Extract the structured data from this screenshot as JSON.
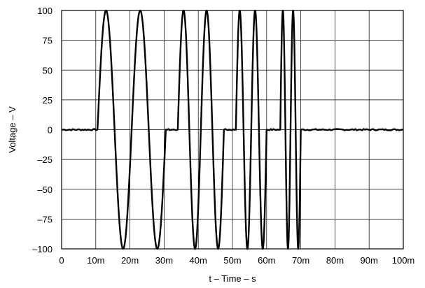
{
  "chart_data": {
    "type": "line",
    "title": "",
    "xlabel": "t – Time – s",
    "ylabel": "Voltage – V",
    "xlim": [
      0,
      0.1
    ],
    "ylim": [
      -100,
      100
    ],
    "grid": true,
    "x_ticks": [
      {
        "value": 0,
        "label": "0"
      },
      {
        "value": 0.01,
        "label": "10m"
      },
      {
        "value": 0.02,
        "label": "20m"
      },
      {
        "value": 0.03,
        "label": "30m"
      },
      {
        "value": 0.04,
        "label": "40m"
      },
      {
        "value": 0.05,
        "label": "50m"
      },
      {
        "value": 0.06,
        "label": "60m"
      },
      {
        "value": 0.07,
        "label": "70m"
      },
      {
        "value": 0.08,
        "label": "80m"
      },
      {
        "value": 0.09,
        "label": "90m"
      },
      {
        "value": 0.1,
        "label": "100m"
      }
    ],
    "y_ticks": [
      {
        "value": 100,
        "label": "100"
      },
      {
        "value": 75,
        "label": "75"
      },
      {
        "value": 50,
        "label": "50"
      },
      {
        "value": 25,
        "label": "25"
      },
      {
        "value": 0,
        "label": "0"
      },
      {
        "value": -25,
        "label": "–25"
      },
      {
        "value": -50,
        "label": "–50"
      },
      {
        "value": -75,
        "label": "–75"
      },
      {
        "value": -100,
        "label": "–100"
      }
    ],
    "series": [
      {
        "color": "#000000",
        "segments": [
          {
            "type": "flat",
            "t_start": 0,
            "t_end": 0.0105,
            "value": 0
          },
          {
            "type": "sine",
            "t_start": 0.0105,
            "t_end": 0.0305,
            "amplitude": 100,
            "cycles": 2
          },
          {
            "type": "flat",
            "t_start": 0.0305,
            "t_end": 0.034,
            "value": 0
          },
          {
            "type": "sine",
            "t_start": 0.034,
            "t_end": 0.0475,
            "amplitude": 100,
            "cycles": 2
          },
          {
            "type": "flat",
            "t_start": 0.0475,
            "t_end": 0.051,
            "value": 0
          },
          {
            "type": "sine",
            "t_start": 0.051,
            "t_end": 0.06,
            "amplitude": 100,
            "cycles": 2
          },
          {
            "type": "flat",
            "t_start": 0.06,
            "t_end": 0.064,
            "value": 0
          },
          {
            "type": "sine",
            "t_start": 0.064,
            "t_end": 0.07,
            "amplitude": 100,
            "cycles": 2
          },
          {
            "type": "flat",
            "t_start": 0.07,
            "t_end": 0.1,
            "value": 0
          }
        ]
      }
    ]
  }
}
